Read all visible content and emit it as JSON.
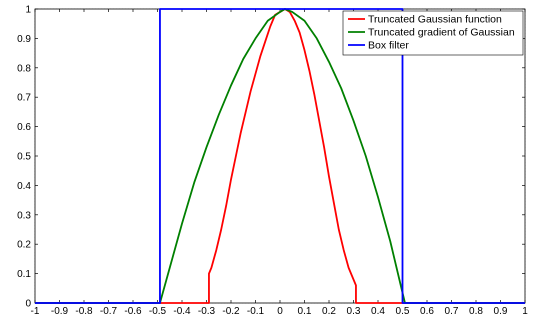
{
  "chart_data": {
    "type": "line",
    "title": "",
    "xlabel": "",
    "ylabel": "",
    "xlim": [
      -1,
      1
    ],
    "ylim": [
      0,
      1
    ],
    "grid": true,
    "legend_position": "top-right",
    "x_ticks": [
      "-1",
      "-0.9",
      "-0.8",
      "-0.7",
      "-0.6",
      "-0.5",
      "-0.4",
      "-0.3",
      "-0.2",
      "-0.1",
      "0",
      "0.1",
      "0.2",
      "0.3",
      "0.4",
      "0.5",
      "0.6",
      "0.7",
      "0.8",
      "0.9",
      "1"
    ],
    "y_ticks": [
      "0",
      "0.1",
      "0.2",
      "0.3",
      "0.4",
      "0.5",
      "0.6",
      "0.7",
      "0.8",
      "0.9",
      "1"
    ],
    "series": [
      {
        "name": "Truncated Gaussian function",
        "color": "#ff0000",
        "x": [
          -1,
          -0.29,
          -0.29,
          -0.28,
          -0.26,
          -0.24,
          -0.22,
          -0.2,
          -0.18,
          -0.16,
          -0.14,
          -0.12,
          -0.1,
          -0.08,
          -0.06,
          -0.04,
          -0.02,
          0,
          0.02,
          0.04,
          0.06,
          0.08,
          0.1,
          0.12,
          0.14,
          0.16,
          0.18,
          0.2,
          0.22,
          0.24,
          0.26,
          0.28,
          0.31,
          0.31,
          1
        ],
        "y": [
          0,
          0,
          0.1,
          0.12,
          0.18,
          0.25,
          0.33,
          0.42,
          0.5,
          0.58,
          0.65,
          0.72,
          0.78,
          0.84,
          0.89,
          0.94,
          0.98,
          0.99,
          1,
          0.99,
          0.96,
          0.92,
          0.86,
          0.79,
          0.71,
          0.62,
          0.53,
          0.43,
          0.34,
          0.25,
          0.18,
          0.12,
          0.06,
          0,
          0
        ]
      },
      {
        "name": "Truncated gradient of Gaussian",
        "color": "#008000",
        "x": [
          -1,
          -0.49,
          -0.45,
          -0.4,
          -0.35,
          -0.3,
          -0.25,
          -0.2,
          -0.15,
          -0.1,
          -0.05,
          0,
          0.02,
          0.05,
          0.1,
          0.15,
          0.2,
          0.25,
          0.3,
          0.35,
          0.4,
          0.45,
          0.51,
          1
        ],
        "y": [
          0,
          0,
          0.12,
          0.27,
          0.41,
          0.53,
          0.64,
          0.74,
          0.83,
          0.9,
          0.96,
          0.99,
          1,
          0.99,
          0.96,
          0.9,
          0.82,
          0.73,
          0.62,
          0.5,
          0.36,
          0.21,
          0,
          0
        ]
      },
      {
        "name": "Box filter",
        "color": "#0000ff",
        "x": [
          -1,
          -0.49,
          -0.49,
          0.5,
          0.5,
          1
        ],
        "y": [
          0,
          0,
          1,
          1,
          0,
          0
        ]
      }
    ]
  }
}
